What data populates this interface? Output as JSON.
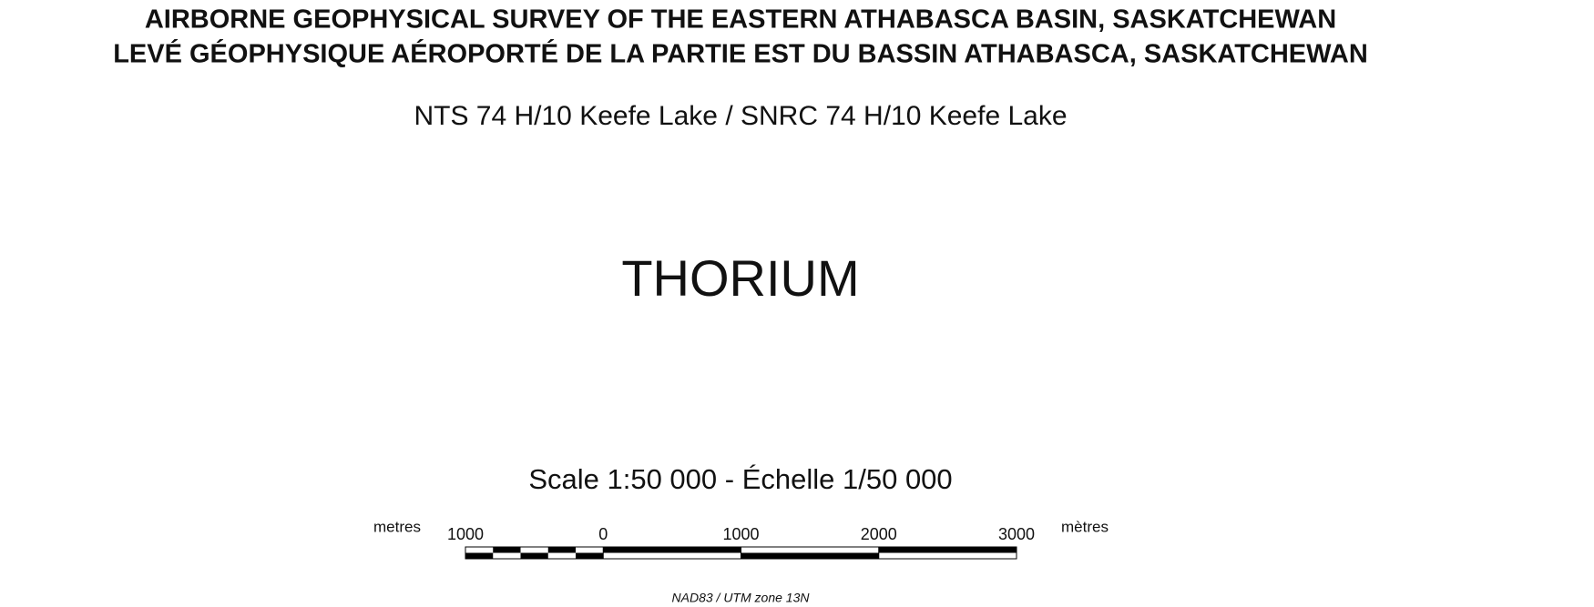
{
  "title_lines": [
    "AIRBORNE GEOPHYSICAL SURVEY OF THE EASTERN ATHABASCA BASIN, SASKATCHEWAN",
    "LEVÉ GÉOPHYSIQUE AÉROPORTÉ DE LA PARTIE EST DU BASSIN ATHABASCA, SASKATCHEWAN"
  ],
  "sheet": "NTS 74 H/10 Keefe Lake / SNRC 74 H/10 Keefe Lake",
  "map_title": "THORIUM",
  "scale_text": "Scale 1:50 000 - Échelle 1/50 000",
  "scale_bar": {
    "unit_left": "metres",
    "unit_right": "mètres",
    "ticks": [
      {
        "value": -1000,
        "label": "1000"
      },
      0,
      1000,
      2000,
      3000
    ]
  },
  "projection": "NAD83 / UTM zone 13N"
}
